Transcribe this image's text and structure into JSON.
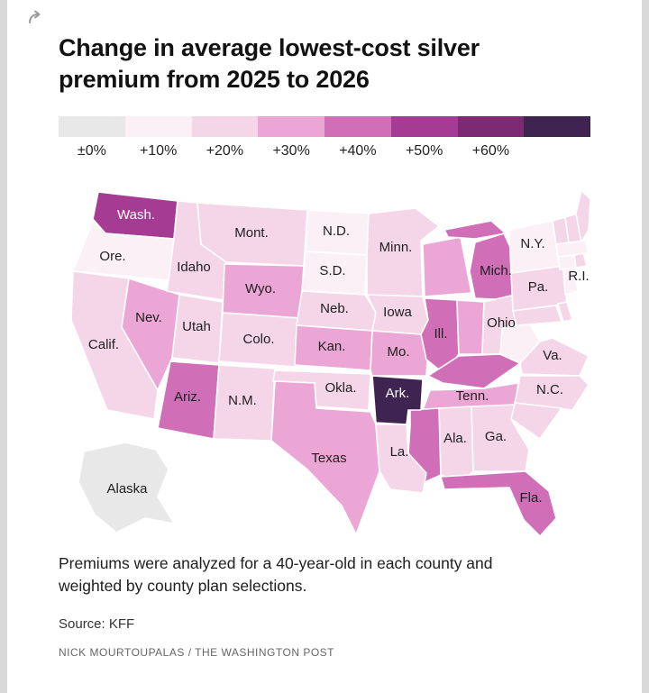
{
  "page": {
    "background": "#d9d9d9",
    "card_background": "#ffffff"
  },
  "header": {
    "title": "Change in average lowest-cost silver premium from 2025 to 2026",
    "share_icon": "share-arrow-icon"
  },
  "legend": {
    "labels": [
      "±0%",
      "+10%",
      "+20%",
      "+30%",
      "+40%",
      "+50%",
      "+60%"
    ],
    "values": [
      "±0%",
      "+10%",
      "+20%",
      "+30%",
      "+40%",
      "+50%",
      "+60%",
      ">+60%"
    ],
    "colors": [
      "#e8e8e8",
      "#fcf0f7",
      "#f5d5e8",
      "#eba6d5",
      "#d06fb7",
      "#a53b93",
      "#7c2a72",
      "#3f2451"
    ]
  },
  "footer": {
    "note": "Premiums were analyzed for a 40-year-old in each county and weighted by county plan selections.",
    "source": "Source: KFF",
    "byline": "NICK MOURTOUPALAS / THE WASHINGTON POST"
  },
  "chart_data": {
    "type": "choropleth",
    "geography": "United States, by state",
    "title": "Change in average lowest-cost silver premium from 2025 to 2026",
    "unit": "percent change in average lowest-cost silver premium",
    "legend_buckets": [
      "±0%",
      "+10%",
      "+20%",
      "+30%",
      "+40%",
      "+50%",
      "+60%",
      ">+60%"
    ],
    "states": [
      {
        "id": "WA",
        "name": "Washington",
        "label": "Wash.",
        "value": "+50%"
      },
      {
        "id": "OR",
        "name": "Oregon",
        "label": "Ore.",
        "value": "+10%"
      },
      {
        "id": "CA",
        "name": "California",
        "label": "Calif.",
        "value": "+20%"
      },
      {
        "id": "ID",
        "name": "Idaho",
        "label": "Idaho",
        "value": "+20%"
      },
      {
        "id": "NV",
        "name": "Nevada",
        "label": "Nev.",
        "value": "+30%"
      },
      {
        "id": "MT",
        "name": "Montana",
        "label": "Mont.",
        "value": "+20%"
      },
      {
        "id": "WY",
        "name": "Wyoming",
        "label": "Wyo.",
        "value": "+30%"
      },
      {
        "id": "UT",
        "name": "Utah",
        "label": "Utah",
        "value": "+20%"
      },
      {
        "id": "CO",
        "name": "Colorado",
        "label": "Colo.",
        "value": "+20%"
      },
      {
        "id": "AZ",
        "name": "Arizona",
        "label": "Ariz.",
        "value": "+40%"
      },
      {
        "id": "NM",
        "name": "New Mexico",
        "label": "N.M.",
        "value": "+20%"
      },
      {
        "id": "ND",
        "name": "North Dakota",
        "label": "N.D.",
        "value": "+10%"
      },
      {
        "id": "SD",
        "name": "South Dakota",
        "label": "S.D.",
        "value": "+10%"
      },
      {
        "id": "NE",
        "name": "Nebraska",
        "label": "Neb.",
        "value": "+20%"
      },
      {
        "id": "KS",
        "name": "Kansas",
        "label": "Kan.",
        "value": "+30%"
      },
      {
        "id": "OK",
        "name": "Oklahoma",
        "label": "Okla.",
        "value": "+20%"
      },
      {
        "id": "TX",
        "name": "Texas",
        "label": "Texas",
        "value": "+30%"
      },
      {
        "id": "MN",
        "name": "Minnesota",
        "label": "Minn.",
        "value": "+20%"
      },
      {
        "id": "IA",
        "name": "Iowa",
        "label": "Iowa",
        "value": "+20%"
      },
      {
        "id": "MO",
        "name": "Missouri",
        "label": "Mo.",
        "value": "+30%"
      },
      {
        "id": "WI",
        "name": "Wisconsin",
        "label": "",
        "value": "+30%"
      },
      {
        "id": "IL",
        "name": "Illinois",
        "label": "Ill.",
        "value": "+40%"
      },
      {
        "id": "IN",
        "name": "Indiana",
        "label": "",
        "value": "+30%"
      },
      {
        "id": "MI",
        "name": "Michigan",
        "label": "Mich.",
        "value": "+40%"
      },
      {
        "id": "OH",
        "name": "Ohio",
        "label": "Ohio",
        "value": "+20%"
      },
      {
        "id": "KY",
        "name": "Kentucky",
        "label": "",
        "value": "+40%"
      },
      {
        "id": "TN",
        "name": "Tennessee",
        "label": "Tenn.",
        "value": "+30%"
      },
      {
        "id": "AR",
        "name": "Arkansas",
        "label": "Ark.",
        "value": ">+60%"
      },
      {
        "id": "LA",
        "name": "Louisiana",
        "label": "La.",
        "value": "+20%"
      },
      {
        "id": "MS",
        "name": "Mississippi",
        "label": "",
        "value": "+40%"
      },
      {
        "id": "AL",
        "name": "Alabama",
        "label": "Ala.",
        "value": "+20%"
      },
      {
        "id": "GA",
        "name": "Georgia",
        "label": "Ga.",
        "value": "+20%"
      },
      {
        "id": "FL",
        "name": "Florida",
        "label": "Fla.",
        "value": "+40%"
      },
      {
        "id": "SC",
        "name": "South Carolina",
        "label": "",
        "value": "+20%"
      },
      {
        "id": "NC",
        "name": "North Carolina",
        "label": "N.C.",
        "value": "+20%"
      },
      {
        "id": "VA",
        "name": "Virginia",
        "label": "Va.",
        "value": "+20%"
      },
      {
        "id": "WV",
        "name": "West Virginia",
        "label": "",
        "value": "+10%"
      },
      {
        "id": "PA",
        "name": "Pennsylvania",
        "label": "Pa.",
        "value": "+20%"
      },
      {
        "id": "NY",
        "name": "New York",
        "label": "N.Y.",
        "value": "+10%"
      },
      {
        "id": "NJ",
        "name": "New Jersey",
        "label": "",
        "value": "+10%"
      },
      {
        "id": "MD",
        "name": "Maryland",
        "label": "",
        "value": "+20%"
      },
      {
        "id": "DE",
        "name": "Delaware",
        "label": "",
        "value": "+20%"
      },
      {
        "id": "CT",
        "name": "Connecticut",
        "label": "",
        "value": "+10%"
      },
      {
        "id": "RI",
        "name": "Rhode Island",
        "label": "R.I.",
        "value": "+20%"
      },
      {
        "id": "MA",
        "name": "Massachusetts",
        "label": "",
        "value": "+10%"
      },
      {
        "id": "VT",
        "name": "Vermont",
        "label": "",
        "value": "+20%"
      },
      {
        "id": "NH",
        "name": "New Hampshire",
        "label": "",
        "value": "+20%"
      },
      {
        "id": "ME",
        "name": "Maine",
        "label": "",
        "value": "+20%"
      },
      {
        "id": "AK",
        "name": "Alaska",
        "label": "Alaska",
        "value": "±0%"
      }
    ]
  }
}
